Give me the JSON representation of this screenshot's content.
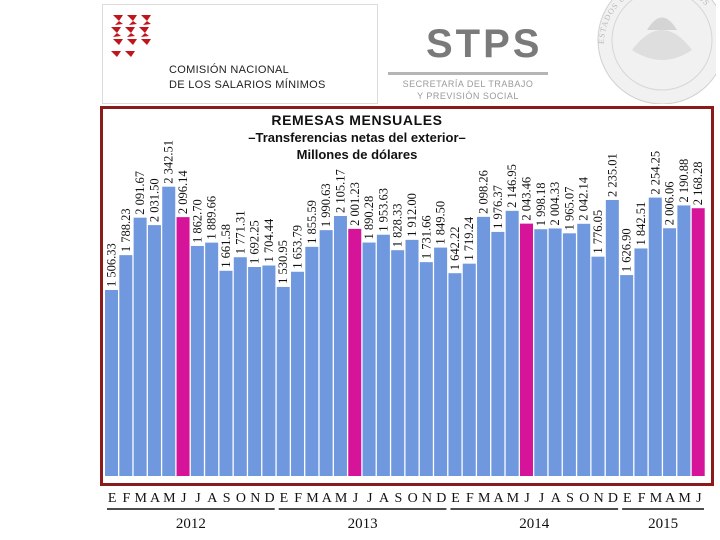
{
  "header": {
    "org_line1": "Comisión Nacional",
    "org_line2": "De Los Salarios Mínimos",
    "stps_logo": "STPS",
    "stps_sub_line1": "SECRETARÍA DEL TRABAJO",
    "stps_sub_line2": "Y PREVISIÓN SOCIAL",
    "seal_text": "ESTADOS UNIDOS MEXICANOS"
  },
  "colors": {
    "bar_default": "#6f98df",
    "bar_highlight": "#d6149a",
    "frame": "#8b1a1a"
  },
  "chart_data": {
    "type": "bar",
    "title": "REMESAS MENSUALES",
    "subtitle": "–Transferencias netas del exterior–",
    "unit": "Millones de dólares",
    "categories": [
      "E",
      "F",
      "M",
      "A",
      "M",
      "J",
      "J",
      "A",
      "S",
      "O",
      "N",
      "D",
      "E",
      "F",
      "M",
      "A",
      "M",
      "J",
      "J",
      "A",
      "S",
      "O",
      "N",
      "D",
      "E",
      "F",
      "M",
      "A",
      "M",
      "J",
      "J",
      "A",
      "S",
      "O",
      "N",
      "D",
      "E",
      "F",
      "M",
      "A",
      "M",
      "J"
    ],
    "value_labels": [
      "1 506.33",
      "1 788.23",
      "2 091.67",
      "2 031.50",
      "2 342.51",
      "2 096.14",
      "1 862.70",
      "1 889.66",
      "1 661.58",
      "1 771.31",
      "1 692.25",
      "1 704.44",
      "1 530.95",
      "1 653.79",
      "1 855.59",
      "1 990.63",
      "2 105.17",
      "2 001.23",
      "1 890.28",
      "1 953.63",
      "1 828.33",
      "1 912.00",
      "1 731.66",
      "1 849.50",
      "1 642.22",
      "1 719.24",
      "2 098.26",
      "1 976.37",
      "2 146.95",
      "2 043.46",
      "1 998.18",
      "2 004.33",
      "1 965.07",
      "2 042.14",
      "1 776.05",
      "2 235.01",
      "1 626.90",
      "1 842.51",
      "2 254.25",
      "2 006.06",
      "2 190.88",
      "2 168.28"
    ],
    "values": [
      1506.33,
      1788.23,
      2091.67,
      2031.5,
      2342.51,
      2096.14,
      1862.7,
      1889.66,
      1661.58,
      1771.31,
      1692.25,
      1704.44,
      1530.95,
      1653.79,
      1855.59,
      1990.63,
      2105.17,
      2001.23,
      1890.28,
      1953.63,
      1828.33,
      1912.0,
      1731.66,
      1849.5,
      1642.22,
      1719.24,
      2098.26,
      1976.37,
      2146.95,
      2043.46,
      1998.18,
      2004.33,
      1965.07,
      2042.14,
      1776.05,
      2235.01,
      1626.9,
      1842.51,
      2254.25,
      2006.06,
      2190.88,
      2168.28
    ],
    "highlight_indices": [
      5,
      17,
      29,
      41
    ],
    "years": [
      {
        "label": "2012",
        "start": 0,
        "end": 11
      },
      {
        "label": "2013",
        "start": 12,
        "end": 23
      },
      {
        "label": "2014",
        "start": 24,
        "end": 35
      },
      {
        "label": "2015",
        "start": 36,
        "end": 41
      }
    ],
    "ylim": [
      0,
      2500
    ],
    "grid": false,
    "legend": "none"
  }
}
